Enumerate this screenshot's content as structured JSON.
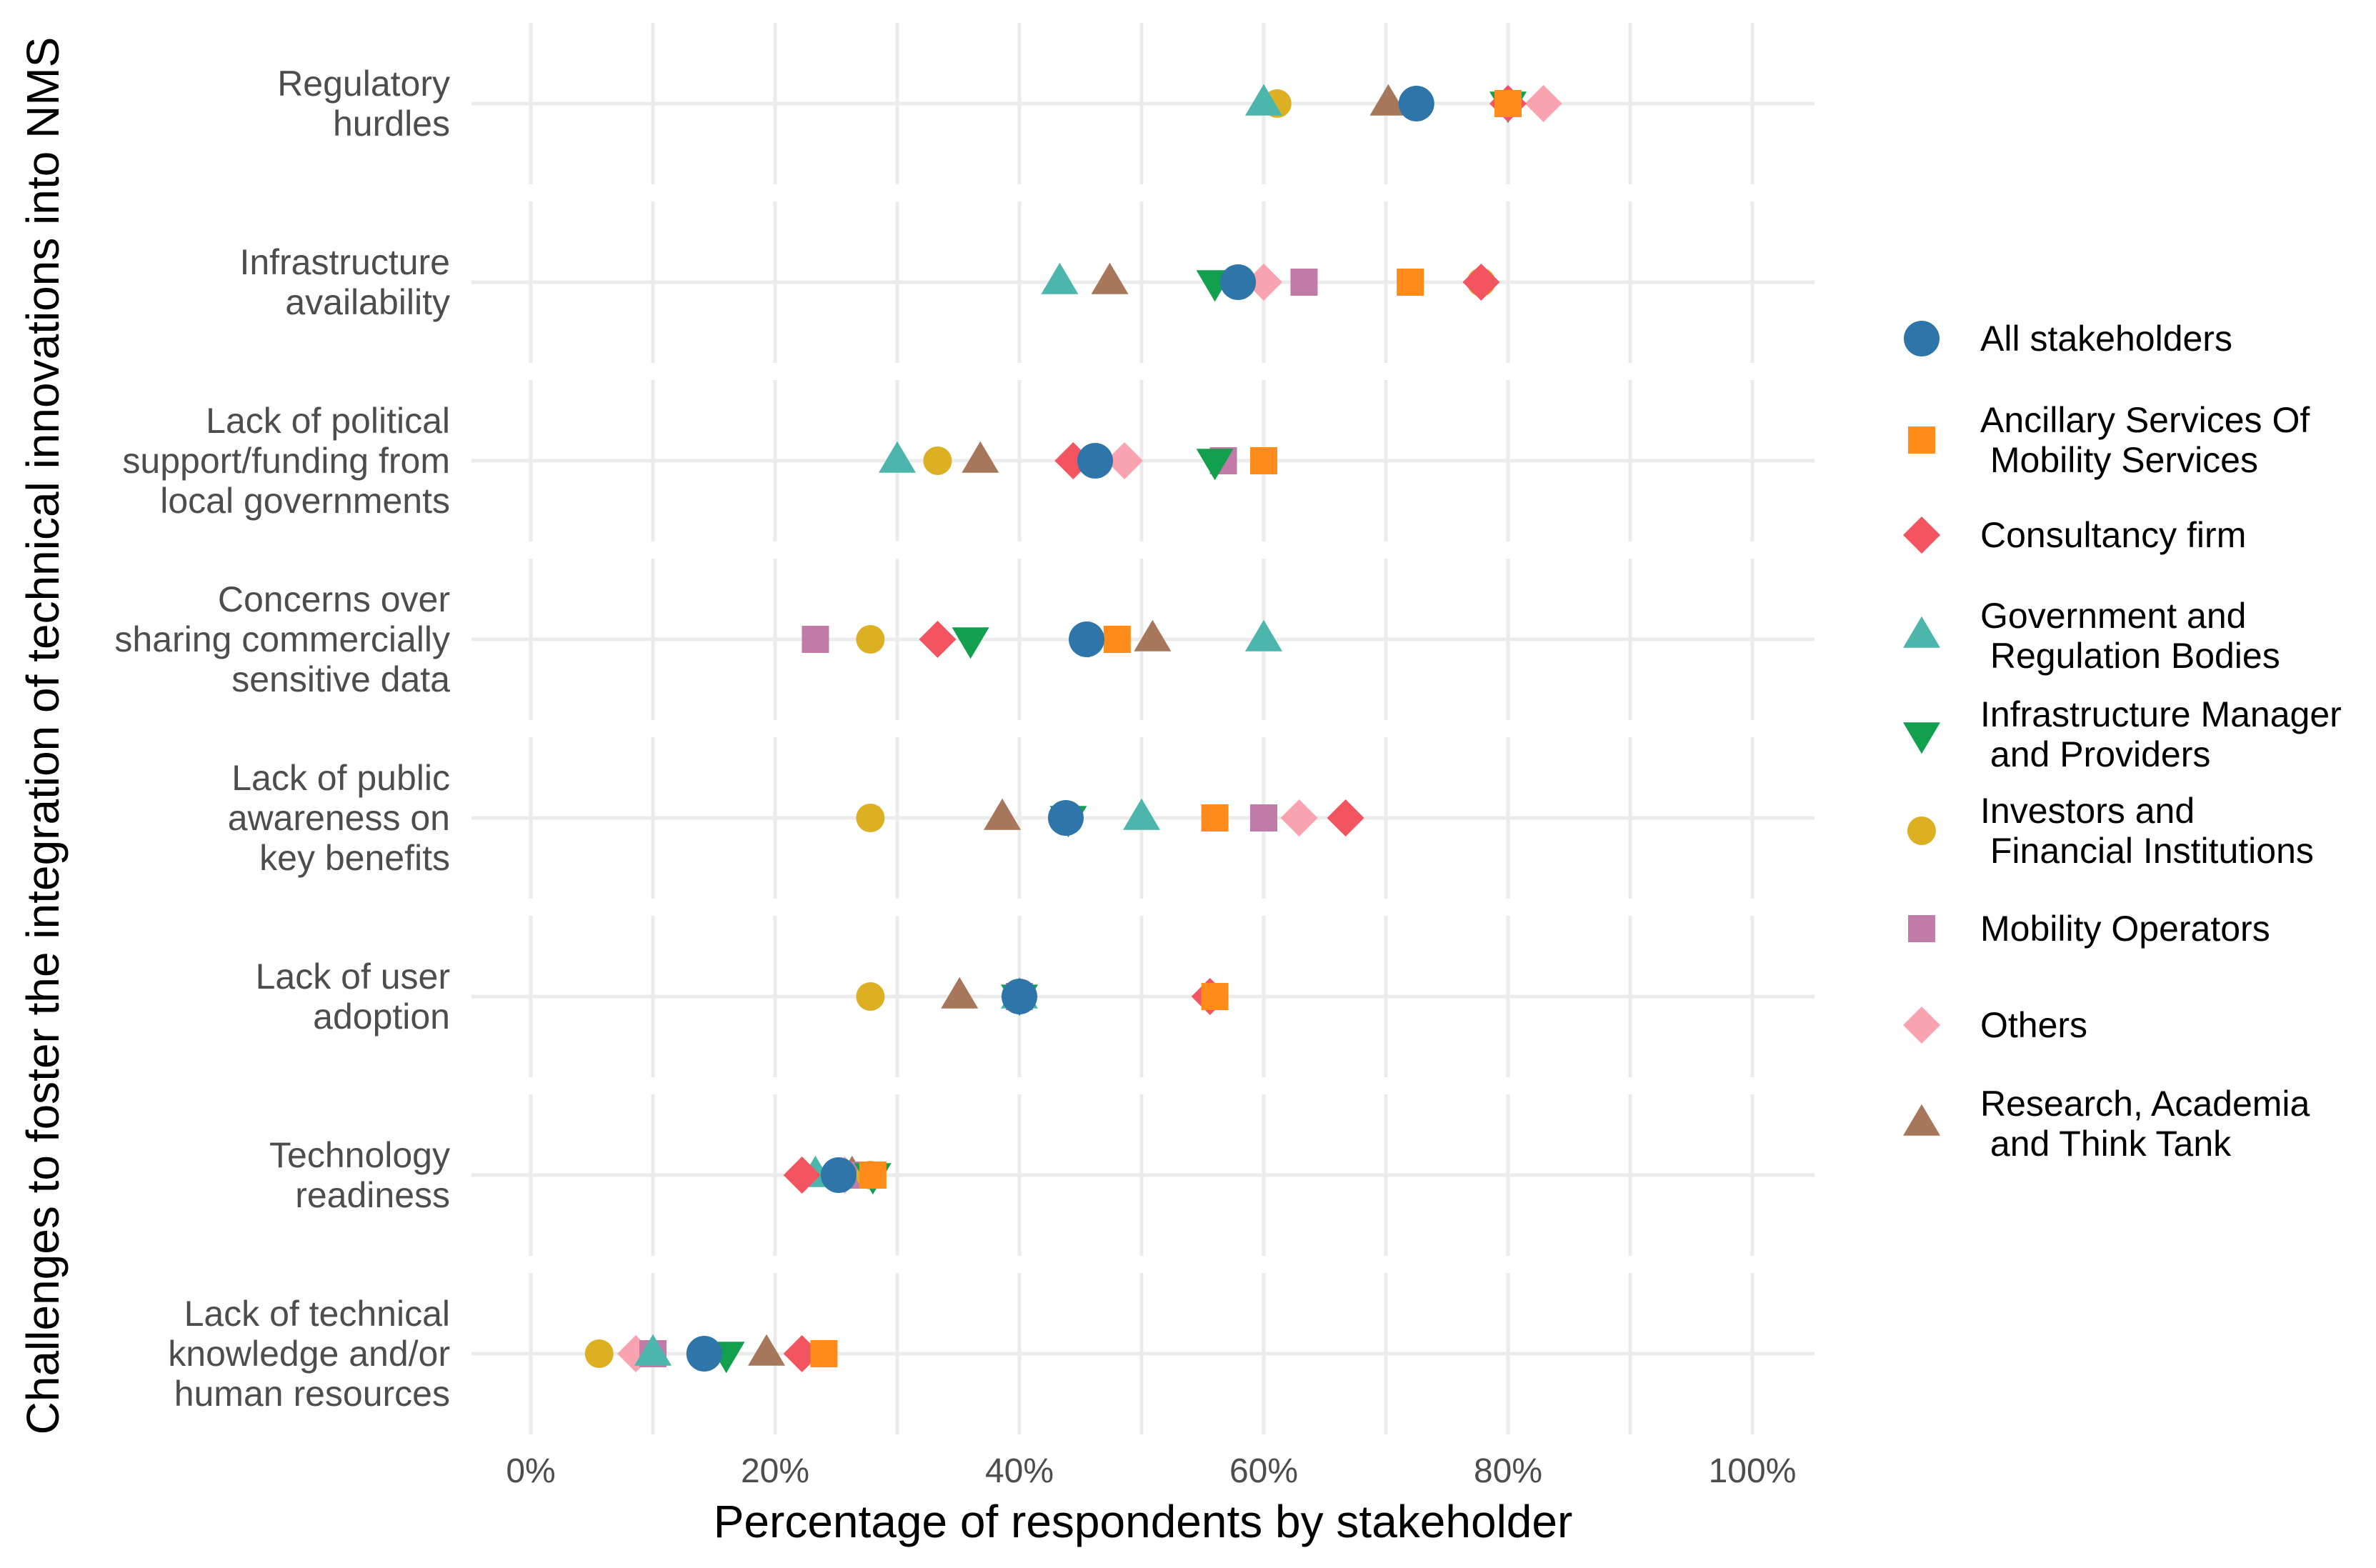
{
  "chart_data": {
    "type": "scatter",
    "xlabel": "Percentage of respondents by stakeholder",
    "ylabel": "Challenges to foster the integration of technical innovations into NMS",
    "xlim": [
      0,
      100
    ],
    "x_ticks": [
      "0%",
      "20%",
      "40%",
      "60%",
      "80%",
      "100%"
    ],
    "x_tick_values": [
      0,
      20,
      40,
      60,
      80,
      100
    ],
    "legend_position": "right",
    "categories": [
      [
        "Regulatory",
        "hurdles"
      ],
      [
        "Infrastructure",
        "availability"
      ],
      [
        "Lack of political",
        "support/funding from",
        "local governments"
      ],
      [
        "Concerns over",
        "sharing commercially",
        "sensitive data"
      ],
      [
        "Lack of public",
        "awareness on",
        "key benefits"
      ],
      [
        "Lack of user",
        "adoption"
      ],
      [
        "Technology",
        "readiness"
      ],
      [
        "Lack of technical",
        "knowledge and/or",
        "human resources"
      ]
    ],
    "series": [
      {
        "name": "All stakeholders",
        "legend_lines": [
          "All stakeholders"
        ],
        "shape": "circle",
        "color": "#2E75AA",
        "values": [
          72.5,
          57.9,
          46.2,
          45.5,
          43.8,
          40.0,
          25.2,
          14.2
        ]
      },
      {
        "name": "Ancillary Services Of Mobility Services",
        "legend_lines": [
          "Ancillary Services Of",
          " Mobility Services"
        ],
        "shape": "square",
        "color": "#FF8C1A",
        "values": [
          80.0,
          72.0,
          60.0,
          48.0,
          56.0,
          56.0,
          28.0,
          24.0
        ]
      },
      {
        "name": "Consultancy firm",
        "legend_lines": [
          "Consultancy firm"
        ],
        "shape": "diamond",
        "color": "#F25560",
        "values": [
          80.0,
          77.8,
          44.4,
          33.3,
          66.7,
          55.6,
          22.2,
          22.2
        ]
      },
      {
        "name": "Government and Regulation Bodies",
        "legend_lines": [
          "Government and",
          " Regulation Bodies"
        ],
        "shape": "triangle-up",
        "color": "#4DB6AC",
        "values": [
          60.0,
          43.3,
          30.0,
          60.0,
          50.0,
          40.0,
          23.3,
          10.0
        ]
      },
      {
        "name": "Infrastructure Manager and Providers",
        "legend_lines": [
          "Infrastructure Manager",
          " and Providers"
        ],
        "shape": "triangle-down",
        "color": "#12A04E",
        "values": [
          80.0,
          56.0,
          56.0,
          36.0,
          44.0,
          40.0,
          28.0,
          16.0
        ]
      },
      {
        "name": "Investors and Financial Institutions",
        "legend_lines": [
          "Investors and",
          " Financial Institutions"
        ],
        "shape": "circle-small",
        "color": "#DDAF22",
        "values": [
          61.1,
          77.8,
          33.3,
          27.8,
          27.8,
          27.8,
          27.8,
          5.6
        ]
      },
      {
        "name": "Mobility Operators",
        "legend_lines": [
          "Mobility Operators"
        ],
        "shape": "square",
        "color": "#C17BA9",
        "values": [
          80.0,
          63.3,
          56.7,
          23.3,
          60.0,
          40.0,
          26.7,
          10.0
        ]
      },
      {
        "name": "Others",
        "legend_lines": [
          "Others"
        ],
        "shape": "diamond",
        "color": "#FAA3B0",
        "values": [
          82.9,
          60.0,
          48.6,
          45.7,
          62.9,
          40.0,
          25.7,
          8.6
        ]
      },
      {
        "name": "Research, Academia and Think Tank",
        "legend_lines": [
          "Research, Academia",
          " and Think Tank"
        ],
        "shape": "triangle-up",
        "color": "#A6775A",
        "values": [
          70.2,
          47.4,
          36.8,
          50.9,
          38.6,
          35.1,
          26.3,
          19.3
        ]
      }
    ]
  }
}
